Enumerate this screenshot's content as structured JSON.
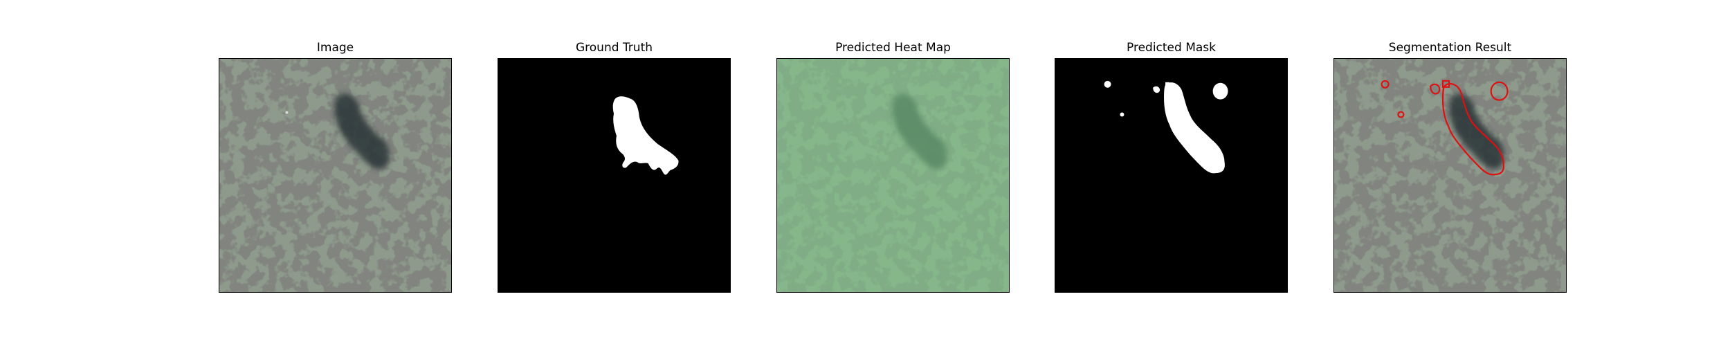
{
  "panels": [
    {
      "title": "Image"
    },
    {
      "title": "Ground Truth"
    },
    {
      "title": "Predicted Heat Map"
    },
    {
      "title": "Predicted Mask"
    },
    {
      "title": "Segmentation Result"
    }
  ],
  "colors": {
    "texture_base": "#8e9a8c",
    "texture_spots": "#3a3d36",
    "heatmap_tint": "#7fd08a",
    "mask_background": "#000000",
    "mask_foreground": "#ffffff",
    "contour": "#e01010"
  }
}
